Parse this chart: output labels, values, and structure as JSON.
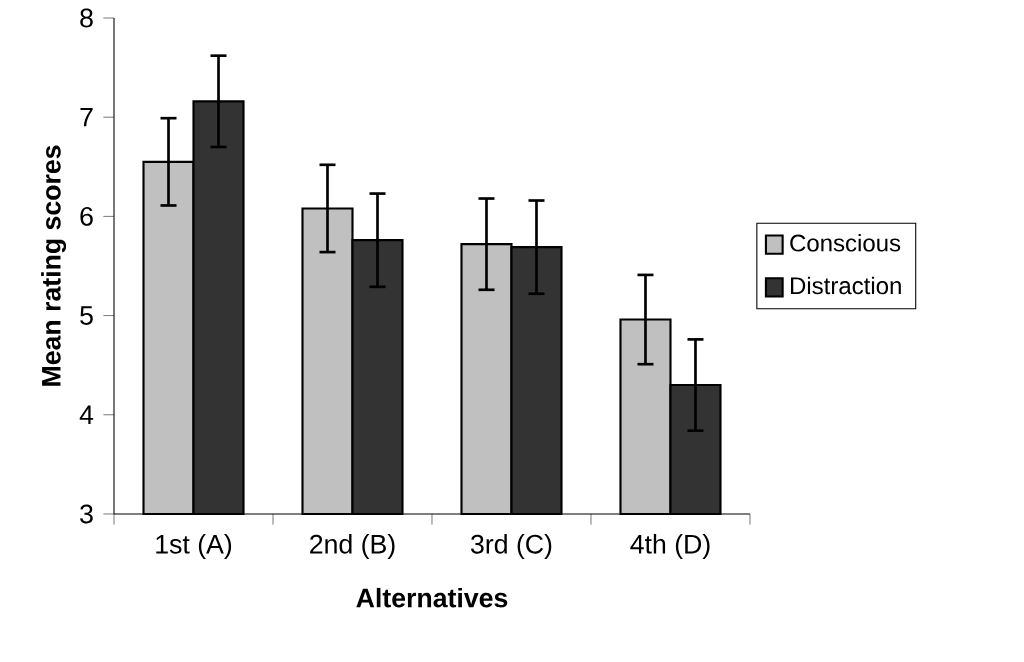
{
  "chart_data": {
    "type": "bar",
    "xlabel": "Alternatives",
    "ylabel": "Mean rating scores",
    "categories": [
      "1st (A)",
      "2nd (B)",
      "3rd (C)",
      "4th (D)"
    ],
    "series": [
      {
        "name": "Conscious",
        "color": "#c0c0c0",
        "values": [
          6.55,
          6.08,
          5.72,
          4.96
        ],
        "errors": [
          0.44,
          0.44,
          0.46,
          0.45
        ]
      },
      {
        "name": "Distraction",
        "color": "#333333",
        "values": [
          7.16,
          5.76,
          5.69,
          4.3
        ],
        "errors": [
          0.46,
          0.47,
          0.47,
          0.46
        ]
      }
    ],
    "ylim": [
      3,
      8
    ],
    "yticks": [
      3,
      4,
      5,
      6,
      7,
      8
    ],
    "grid": false,
    "legend": "right"
  }
}
